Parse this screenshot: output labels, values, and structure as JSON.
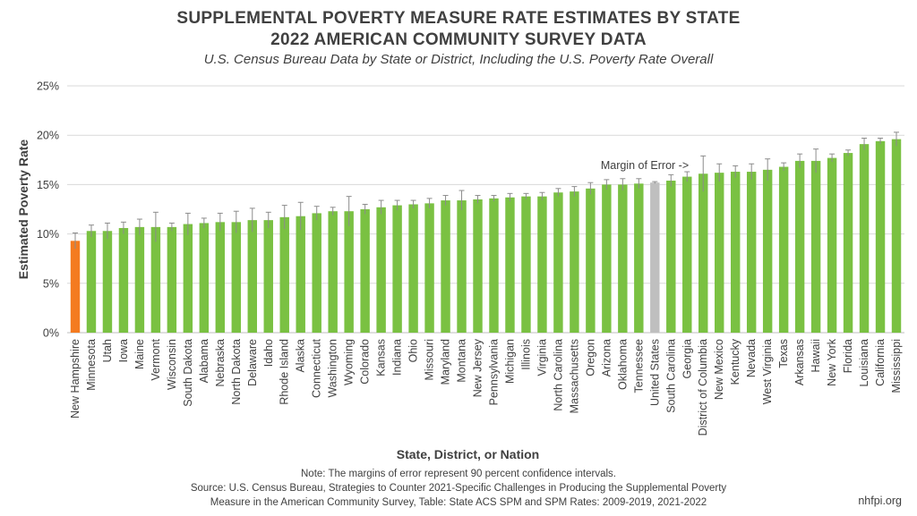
{
  "header": {
    "title_line1": "SUPPLEMENTAL POVERTY MEASURE RATE ESTIMATES BY STATE",
    "title_line2": "2022 AMERICAN COMMUNITY SURVEY DATA",
    "subtitle": "U.S. Census Bureau Data by State or District, Including the U.S. Poverty Rate Overall"
  },
  "footer": {
    "note": "Note: The margins of error represent 90 percent confidence intervals.",
    "source_line1": "Source: U.S. Census Bureau, Strategies to Counter 2021-Specific Challenges in Producing the Supplemental Poverty",
    "source_line2": "Measure in the American Community Survey, Table: State ACS SPM and SPM Rates: 2009-2019, 2021-2022",
    "brand": "nhfpi.org"
  },
  "colors": {
    "default_bar": "#7AC142",
    "highlight_first": "#F47B20",
    "us_bar": "#BFBFBF",
    "grid": "#D9D9D9",
    "error_bar": "#8C8C8C",
    "text": "#404040"
  },
  "chart_data": {
    "type": "bar",
    "title": "SUPPLEMENTAL POVERTY MEASURE RATE ESTIMATES BY STATE 2022 AMERICAN COMMUNITY SURVEY DATA",
    "subtitle": "U.S. Census Bureau Data by State or District, Including the U.S. Poverty Rate Overall",
    "xlabel": "State, District, or Nation",
    "ylabel": "Estimated Poverty Rate",
    "ylim": [
      0,
      25
    ],
    "yticks": [
      "0%",
      "5%",
      "10%",
      "15%",
      "20%",
      "25%"
    ],
    "grid": true,
    "annotation": "Margin of Error ->",
    "categories": [
      "New Hampshire",
      "Minnesota",
      "Utah",
      "Iowa",
      "Maine",
      "Vermont",
      "Wisconsin",
      "South Dakota",
      "Alabama",
      "Nebraska",
      "North Dakota",
      "Delaware",
      "Idaho",
      "Rhode Island",
      "Alaska",
      "Connecticut",
      "Washington",
      "Wyoming",
      "Colorado",
      "Kansas",
      "Indiana",
      "Ohio",
      "Missouri",
      "Maryland",
      "Montana",
      "New Jersey",
      "Pennsylvania",
      "Michigan",
      "Illinois",
      "Virginia",
      "North Carolina",
      "Massachusetts",
      "Oregon",
      "Arizona",
      "Oklahoma",
      "Tennessee",
      "United States",
      "South Carolina",
      "Georgia",
      "District of Columbia",
      "New Mexico",
      "Kentucky",
      "Nevada",
      "West Virginia",
      "Texas",
      "Arkansas",
      "Hawaii",
      "New York",
      "Florida",
      "Louisiana",
      "California",
      "Mississippi"
    ],
    "values": [
      9.3,
      10.3,
      10.3,
      10.6,
      10.7,
      10.7,
      10.7,
      11.0,
      11.1,
      11.2,
      11.2,
      11.4,
      11.4,
      11.7,
      11.8,
      12.1,
      12.3,
      12.3,
      12.5,
      12.7,
      12.9,
      13.0,
      13.1,
      13.4,
      13.4,
      13.5,
      13.6,
      13.7,
      13.8,
      13.8,
      14.2,
      14.3,
      14.6,
      15.0,
      15.0,
      15.1,
      15.2,
      15.4,
      15.8,
      16.1,
      16.2,
      16.3,
      16.3,
      16.5,
      16.8,
      17.4,
      17.4,
      17.7,
      18.2,
      19.1,
      19.4,
      19.6
    ],
    "moe": [
      0.8,
      0.6,
      0.8,
      0.6,
      0.8,
      1.5,
      0.4,
      1.1,
      0.5,
      0.9,
      1.1,
      1.2,
      0.8,
      1.2,
      1.4,
      0.7,
      0.4,
      1.5,
      0.5,
      0.7,
      0.5,
      0.4,
      0.5,
      0.5,
      1.0,
      0.4,
      0.3,
      0.4,
      0.3,
      0.4,
      0.4,
      0.5,
      0.6,
      0.5,
      0.6,
      0.5,
      0.1,
      0.6,
      0.5,
      1.8,
      0.9,
      0.6,
      0.8,
      1.1,
      0.4,
      0.7,
      1.2,
      0.4,
      0.3,
      0.6,
      0.3,
      0.7
    ]
  }
}
